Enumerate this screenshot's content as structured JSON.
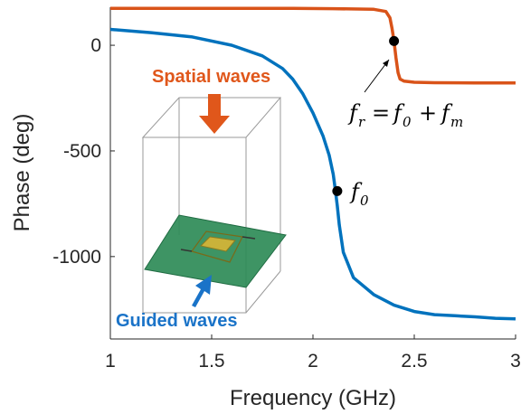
{
  "chart_data": {
    "type": "line",
    "xlabel": "Frequency (GHz)",
    "ylabel": "Phase (deg)",
    "xlim": [
      1,
      3
    ],
    "ylim": [
      -1390,
      180
    ],
    "xticks": [
      1,
      1.5,
      2,
      2.5,
      3
    ],
    "xtick_labels": [
      "1",
      "1.5",
      "2",
      "2.5",
      "3"
    ],
    "yticks": [
      0,
      -500,
      -1000
    ],
    "ytick_labels": [
      "0",
      "-500",
      "-1000"
    ],
    "grid": false,
    "series": [
      {
        "color": "#D95319",
        "x": [
          1.0,
          1.5,
          1.9,
          2.1,
          2.3,
          2.36,
          2.38,
          2.39,
          2.4,
          2.41,
          2.42,
          2.43,
          2.45,
          2.5,
          2.6,
          2.8,
          3.0
        ],
        "y": [
          175,
          175,
          175,
          173,
          170,
          160,
          130,
          80,
          20,
          -60,
          -130,
          -160,
          -170,
          -175,
          -177,
          -178,
          -178
        ]
      },
      {
        "color": "#0072BD",
        "x": [
          1.0,
          1.2,
          1.4,
          1.6,
          1.75,
          1.85,
          1.9,
          1.95,
          2.0,
          2.05,
          2.08,
          2.1,
          2.11,
          2.12,
          2.13,
          2.15,
          2.2,
          2.3,
          2.4,
          2.5,
          2.6,
          2.7,
          2.8,
          2.9,
          3.0
        ],
        "y": [
          75,
          60,
          40,
          0,
          -50,
          -110,
          -160,
          -230,
          -320,
          -430,
          -520,
          -610,
          -680,
          -760,
          -850,
          -980,
          -1100,
          -1180,
          -1230,
          -1260,
          -1275,
          -1280,
          -1285,
          -1292,
          -1295
        ]
      }
    ],
    "markers": [
      {
        "x": 2.4,
        "y": 20,
        "label_main": "f",
        "label_sub": "r",
        "label_mid": "= ",
        "label_f0": "f",
        "label_f0_sub": "0",
        "label_plus": " + ",
        "label_fm": "f",
        "label_fm_sub": "m"
      },
      {
        "x": 2.12,
        "y": -690,
        "label_main": "f",
        "label_sub": "0"
      }
    ],
    "annotations": {
      "spatial": {
        "text": "Spatial waves",
        "color": "#E0571B"
      },
      "guided": {
        "text": "Guided waves",
        "color": "#1A73C8"
      }
    }
  }
}
